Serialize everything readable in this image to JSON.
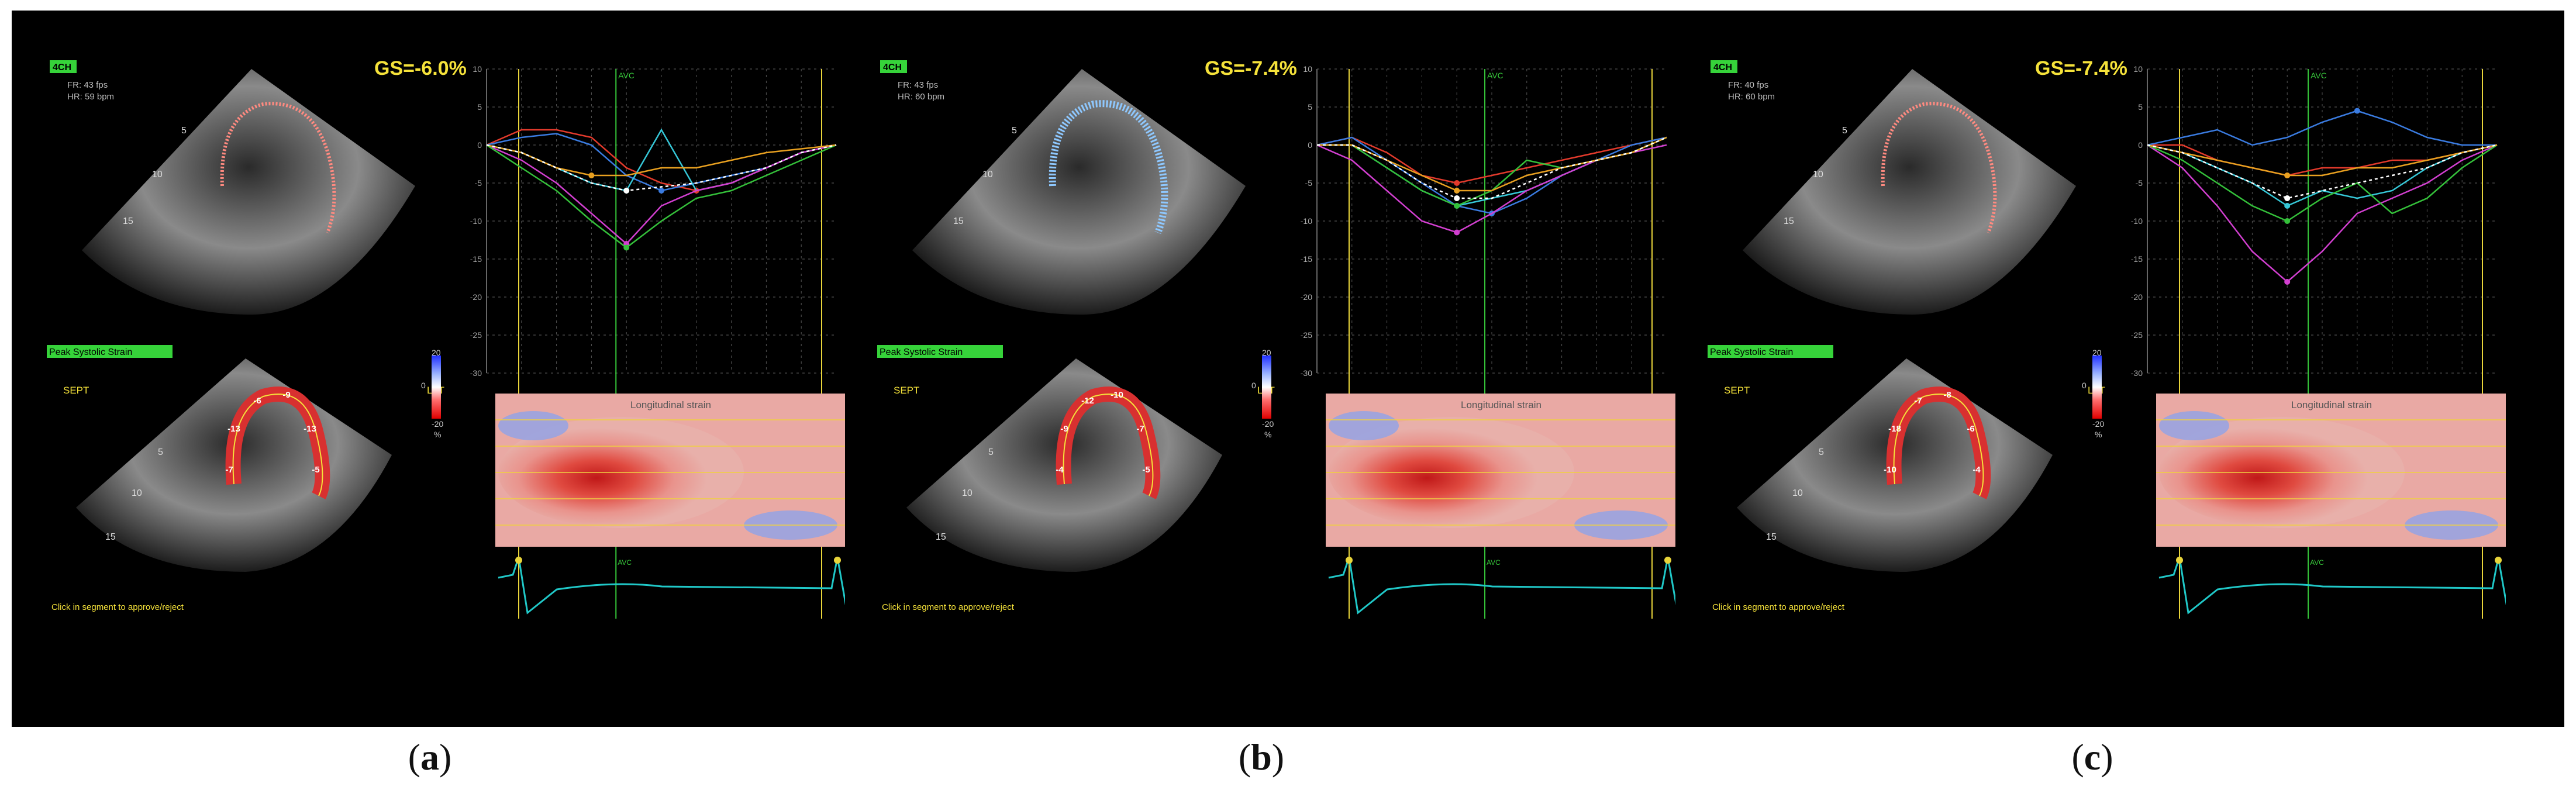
{
  "panels": [
    {
      "id": "a",
      "view": "4CH",
      "fr": "FR: 43 fps",
      "hr": "HR: 59 bpm",
      "gs": "GS=-6.0%",
      "peak_label": "Peak Systolic Strain",
      "sept": "SEPT",
      "lat": "LAT",
      "colorbar": [
        "20",
        "0",
        "-20",
        "%"
      ],
      "map_title": "Longitudinal strain",
      "avc": "AVC",
      "avc_ecg": "AVC",
      "click": "Click in segment to approve/reject",
      "depth_top": [
        "5",
        "10",
        "15"
      ],
      "depth_bottom": [
        "5",
        "10",
        "15"
      ],
      "segments": [
        "-7",
        "-13",
        "-6",
        "-9",
        "-13",
        "-5"
      ],
      "caption": "a",
      "chart_data": {
        "type": "line",
        "ylim": [
          -30,
          10
        ],
        "yticks": [
          "10",
          "5",
          "0",
          "-5",
          "-10",
          "-15",
          "-20",
          "-25",
          "-30"
        ],
        "x": [
          0,
          0.1,
          0.2,
          0.3,
          0.4,
          0.5,
          0.6,
          0.7,
          0.8,
          0.9,
          1.0
        ],
        "avc_x": 0.37,
        "series": [
          {
            "color": "#e33a2c",
            "values": [
              0,
              2,
              2,
              1,
              -3,
              -5,
              -6,
              -5,
              -3,
              -1,
              0
            ]
          },
          {
            "color": "#3a7be0",
            "values": [
              0,
              1,
              1.5,
              0,
              -4,
              -6,
              -5,
              -4,
              -3,
              -1,
              0
            ]
          },
          {
            "color": "#36c8d8",
            "values": [
              0,
              -1,
              -3,
              -5,
              -6,
              2,
              -6,
              -5,
              -3,
              -1,
              0
            ]
          },
          {
            "color": "#d23fd0",
            "values": [
              0,
              -2,
              -5,
              -9,
              -13,
              -8,
              -6,
              -5,
              -3,
              -1,
              0
            ]
          },
          {
            "color": "#34c03a",
            "values": [
              0,
              -3,
              -6,
              -10,
              -13.5,
              -10,
              -7,
              -6,
              -4,
              -2,
              0
            ]
          },
          {
            "color": "#e8a020",
            "values": [
              0,
              -1,
              -3,
              -4,
              -4,
              -3,
              -3,
              -2,
              -1,
              -0.5,
              0
            ]
          },
          {
            "color": "#ffffff",
            "values": [
              0,
              -1,
              -3,
              -5,
              -6,
              -5.5,
              -5,
              -4,
              -3,
              -1,
              0
            ]
          }
        ]
      }
    },
    {
      "id": "b",
      "view": "4CH",
      "fr": "FR: 43 fps",
      "hr": "HR: 60 bpm",
      "gs": "GS=-7.4%",
      "peak_label": "Peak Systolic Strain",
      "sept": "SEPT",
      "lat": "LAT",
      "colorbar": [
        "20",
        "0",
        "-20",
        "%"
      ],
      "map_title": "Longitudinal strain",
      "avc": "AVC",
      "avc_ecg": "AVC",
      "click": "Click in segment to approve/reject",
      "depth_top": [
        "5",
        "10",
        "15"
      ],
      "depth_bottom": [
        "5",
        "10",
        "15"
      ],
      "segments": [
        "-4",
        "-9",
        "-12",
        "-10",
        "-7",
        "-5"
      ],
      "caption": "b",
      "chart_data": {
        "type": "line",
        "ylim": [
          -30,
          10
        ],
        "yticks": [
          "10",
          "5",
          "0",
          "-5",
          "-10",
          "-15",
          "-20",
          "-25",
          "-30"
        ],
        "x": [
          0,
          0.1,
          0.2,
          0.3,
          0.4,
          0.5,
          0.6,
          0.7,
          0.8,
          0.9,
          1.0
        ],
        "avc_x": 0.48,
        "series": [
          {
            "color": "#e33a2c",
            "values": [
              0,
              1,
              -1,
              -4,
              -5,
              -4,
              -3,
              -2,
              -1,
              0,
              1
            ]
          },
          {
            "color": "#3a7be0",
            "values": [
              0,
              1,
              -2,
              -5,
              -8,
              -9,
              -7,
              -4,
              -2,
              0,
              1
            ]
          },
          {
            "color": "#36c8d8",
            "values": [
              0,
              0,
              -3,
              -6,
              -8,
              -7,
              -6,
              -4,
              -2,
              -1,
              1
            ]
          },
          {
            "color": "#d23fd0",
            "values": [
              0,
              -2,
              -6,
              -10,
              -11.5,
              -9,
              -6,
              -4,
              -2,
              -1,
              0
            ]
          },
          {
            "color": "#34c03a",
            "values": [
              0,
              0,
              -3,
              -6,
              -8,
              -6,
              -2,
              -3,
              -2,
              -1,
              1
            ]
          },
          {
            "color": "#e8a020",
            "values": [
              0,
              0,
              -2,
              -4,
              -6,
              -6,
              -4,
              -3,
              -2,
              -1,
              1
            ]
          },
          {
            "color": "#ffffff",
            "values": [
              0,
              0,
              -2,
              -5,
              -7,
              -7,
              -5,
              -3,
              -2,
              -1,
              1
            ]
          }
        ]
      }
    },
    {
      "id": "c",
      "view": "4CH",
      "fr": "FR: 40 fps",
      "hr": "HR: 60 bpm",
      "gs": "GS=-7.4%",
      "peak_label": "Peak Systolic Strain",
      "sept": "SEPT",
      "lat": "LAT",
      "colorbar": [
        "20",
        "0",
        "-20",
        "%"
      ],
      "map_title": "Longitudinal strain",
      "avc": "AVC",
      "avc_ecg": "AVC",
      "click": "Click in segment to approve/reject",
      "depth_top": [
        "5",
        "10",
        "15"
      ],
      "depth_bottom": [
        "5",
        "10",
        "15"
      ],
      "segments": [
        "-10",
        "-18",
        "-7",
        "-8",
        "-6",
        "-4"
      ],
      "caption": "c",
      "chart_data": {
        "type": "line",
        "ylim": [
          -30,
          10
        ],
        "yticks": [
          "10",
          "5",
          "0",
          "-5",
          "-10",
          "-15",
          "-20",
          "-25",
          "-30"
        ],
        "x": [
          0,
          0.1,
          0.2,
          0.3,
          0.4,
          0.5,
          0.6,
          0.7,
          0.8,
          0.9,
          1.0
        ],
        "avc_x": 0.46,
        "series": [
          {
            "color": "#e33a2c",
            "values": [
              0,
              0,
              -2,
              -3,
              -4,
              -3,
              -3,
              -2,
              -2,
              -1,
              0
            ]
          },
          {
            "color": "#3a7be0",
            "values": [
              0,
              1,
              2,
              0,
              1,
              3,
              4.5,
              3,
              1,
              0,
              0
            ]
          },
          {
            "color": "#36c8d8",
            "values": [
              0,
              -1,
              -3,
              -5,
              -8,
              -6,
              -7,
              -6,
              -3,
              -1,
              0
            ]
          },
          {
            "color": "#d23fd0",
            "values": [
              0,
              -3,
              -8,
              -14,
              -18,
              -14,
              -9,
              -7,
              -5,
              -2,
              0
            ]
          },
          {
            "color": "#34c03a",
            "values": [
              0,
              -2,
              -5,
              -8,
              -10,
              -7,
              -5,
              -9,
              -7,
              -3,
              0
            ]
          },
          {
            "color": "#e8a020",
            "values": [
              0,
              -1,
              -2,
              -3,
              -4,
              -4,
              -3,
              -3,
              -2,
              -1,
              0
            ]
          },
          {
            "color": "#ffffff",
            "values": [
              0,
              -1,
              -3,
              -5,
              -7,
              -6,
              -5,
              -4,
              -3,
              -1,
              0
            ]
          }
        ]
      }
    }
  ]
}
